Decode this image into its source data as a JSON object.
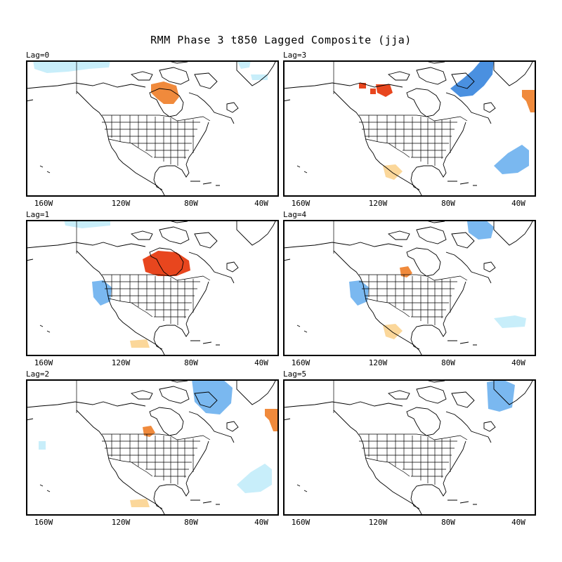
{
  "title": "RMM Phase 3 t850 Lagged Composite (jja)",
  "x_ticks": [
    "160W",
    "120W",
    "80W",
    "40W"
  ],
  "colors": {
    "warm_strong": "#e8461e",
    "warm": "#f08a3c",
    "warm_light": "#fbd79a",
    "cold_strong": "#4a90e0",
    "cold": "#7ab8f0",
    "cold_light": "#c8eefa",
    "land_outline": "#000000"
  },
  "panels": [
    {
      "label": "Lag=0",
      "anomalies": [
        {
          "type": "cold_light",
          "region": "far-northwest Canada"
        },
        {
          "type": "warm",
          "region": "Hudson Bay west"
        },
        {
          "type": "cold_light",
          "region": "Greenland south"
        }
      ]
    },
    {
      "label": "Lag=3",
      "anomalies": [
        {
          "type": "warm_strong",
          "region": "northern Canada"
        },
        {
          "type": "cold_strong",
          "region": "Baffin Island / Labrador Sea"
        },
        {
          "type": "warm",
          "region": "east Greenland"
        },
        {
          "type": "cold",
          "region": "central Atlantic"
        },
        {
          "type": "warm_light",
          "region": "Mexico"
        }
      ]
    },
    {
      "label": "Lag=1",
      "anomalies": [
        {
          "type": "cold_light",
          "region": "Arctic Canada"
        },
        {
          "type": "warm_strong",
          "region": "central Canada / northern Plains"
        },
        {
          "type": "cold",
          "region": "US West Coast"
        },
        {
          "type": "warm_light",
          "region": "Mexico Pacific"
        }
      ]
    },
    {
      "label": "Lag=4",
      "anomalies": [
        {
          "type": "cold",
          "region": "Baffin Bay"
        },
        {
          "type": "warm",
          "region": "northern Plains"
        },
        {
          "type": "cold",
          "region": "US West Coast"
        },
        {
          "type": "warm_light",
          "region": "Mexico"
        },
        {
          "type": "cold_light",
          "region": "western Atlantic"
        }
      ]
    },
    {
      "label": "Lag=2",
      "anomalies": [
        {
          "type": "cold",
          "region": "Baffin Island / Labrador"
        },
        {
          "type": "warm",
          "region": "northern Plains"
        },
        {
          "type": "warm",
          "region": "east Greenland"
        },
        {
          "type": "cold_light",
          "region": "North Pacific"
        },
        {
          "type": "cold_light",
          "region": "central Atlantic"
        },
        {
          "type": "warm_light",
          "region": "Mexico Pacific"
        }
      ]
    },
    {
      "label": "Lag=5",
      "anomalies": [
        {
          "type": "cold",
          "region": "southern Greenland"
        }
      ]
    }
  ]
}
